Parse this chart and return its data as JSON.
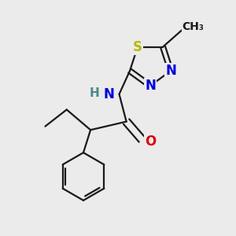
{
  "background_color": "#ebebeb",
  "bond_color": "#1a1a1a",
  "bond_width": 1.6,
  "atom_colors": {
    "S": "#b8b800",
    "N": "#0000dd",
    "O": "#dd0000",
    "C": "#1a1a1a",
    "H": "#4a8888"
  },
  "font_size": 11
}
